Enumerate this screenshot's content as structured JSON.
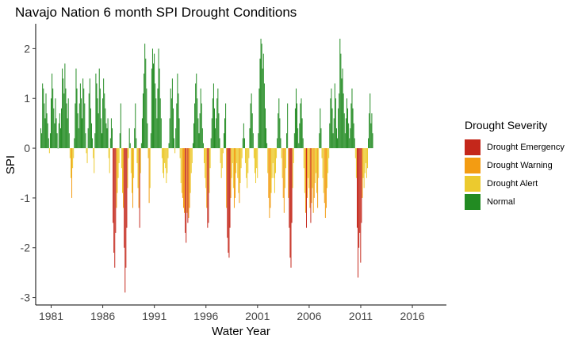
{
  "chart_data": {
    "type": "bar",
    "title": "Navajo Nation 6 month SPI Drought Conditions",
    "xlabel": "Water Year",
    "ylabel": "SPI",
    "xlim": [
      1979.5,
      2019.3
    ],
    "ylim": [
      -3.15,
      2.5
    ],
    "x_ticks": [
      "1981",
      "1986",
      "1991",
      "1996",
      "2001",
      "2006",
      "2011",
      "2016"
    ],
    "y_ticks": [
      "-3",
      "-2",
      "-1",
      "0",
      "1",
      "2"
    ],
    "grid": false,
    "legend": {
      "title": "Drought Severity",
      "position": "right",
      "items": [
        {
          "label": "Drought Emergency",
          "color": "#c4271b"
        },
        {
          "label": "Drought Warning",
          "color": "#f39c12"
        },
        {
          "label": "Drought Alert",
          "color": "#ecca2e"
        },
        {
          "label": "Normal",
          "color": "#228b22"
        }
      ]
    },
    "series": [
      {
        "name": "SPI",
        "x_start": 1980.0,
        "x_step": 0.0833,
        "values": [
          0.4,
          0.3,
          1.3,
          1.2,
          0.9,
          0.6,
          1.1,
          0.7,
          0.5,
          0.2,
          -0.1,
          0.3,
          1.0,
          1.5,
          1.2,
          0.8,
          0.5,
          1.0,
          0.6,
          0.3,
          0.0,
          0.5,
          0.7,
          0.4,
          0.8,
          1.6,
          1.4,
          1.1,
          1.7,
          1.2,
          0.9,
          0.6,
          1.0,
          0.3,
          -0.2,
          -0.6,
          -1.0,
          -0.4,
          -0.2,
          0.2,
          0.9,
          1.6,
          1.2,
          0.7,
          0.4,
          0.9,
          1.3,
          1.0,
          0.6,
          1.4,
          1.2,
          0.9,
          0.3,
          -0.1,
          -0.3,
          0.4,
          1.1,
          1.4,
          0.8,
          0.5,
          0.2,
          -0.2,
          -0.5,
          0.3,
          1.5,
          1.3,
          1.0,
          0.7,
          1.6,
          1.2,
          0.6,
          0.3,
          1.0,
          1.4,
          1.1,
          0.8,
          0.5,
          0.4,
          0.6,
          -0.2,
          -0.5,
          0.2,
          0.6,
          0.4,
          -1.5,
          -2.1,
          -2.4,
          -1.7,
          -1.2,
          -0.9,
          -0.6,
          -0.3,
          0.3,
          0.9,
          -0.4,
          -0.9,
          -1.2,
          -2.0,
          -2.9,
          -2.4,
          -1.6,
          -0.8,
          -0.2,
          0.4,
          0.1,
          -0.5,
          -0.9,
          -1.2,
          -0.6,
          0.4,
          0.9,
          0.2,
          -0.3,
          -0.8,
          -1.2,
          -1.6,
          -0.5,
          0.1,
          0.6,
          1.1,
          1.5,
          2.1,
          1.8,
          1.2,
          0.5,
          -0.2,
          -1.1,
          -0.8,
          0.3,
          1.6,
          2.0,
          1.7,
          1.9,
          1.3,
          1.0,
          0.6,
          1.2,
          2.0,
          1.6,
          1.0,
          0.6,
          -0.2,
          -0.5,
          -0.6,
          -0.3,
          -0.4,
          -0.7,
          -0.5,
          -0.2,
          0.1,
          0.6,
          1.2,
          1.0,
          1.4,
          0.8,
          0.2,
          -0.1,
          0.4,
          0.9,
          1.5,
          1.1,
          0.6,
          -0.2,
          -0.7,
          -0.9,
          -1.0,
          -1.2,
          -1.3,
          -1.7,
          -1.9,
          -1.3,
          -1.5,
          -1.4,
          -1.2,
          -0.9,
          -0.5,
          -0.3,
          0.1,
          0.5,
          0.9,
          1.3,
          1.5,
          1.0,
          0.6,
          0.3,
          0.7,
          1.2,
          0.9,
          0.4,
          0.1,
          -0.3,
          -0.6,
          -0.8,
          -1.2,
          -1.6,
          -1.5,
          -0.9,
          -0.4,
          0.2,
          0.6,
          1.0,
          1.3,
          0.8,
          0.4,
          0.6,
          1.0,
          1.2,
          0.7,
          0.2,
          -0.3,
          -0.6,
          -0.4,
          -0.1,
          0.3,
          0.6,
          0.9,
          -1.2,
          -1.8,
          -2.1,
          -2.2,
          -1.6,
          -1.0,
          -0.6,
          -0.3,
          -0.8,
          -1.2,
          -1.0,
          -0.5,
          -0.3,
          -0.6,
          -0.9,
          -1.1,
          -0.7,
          -0.4,
          -0.2,
          0.2,
          0.5,
          0.2,
          -0.3,
          -0.6,
          -0.8,
          -0.5,
          -0.2,
          0.4,
          0.9,
          1.1,
          0.7,
          0.3,
          -0.2,
          -0.5,
          -0.7,
          -0.4,
          -0.6,
          0.3,
          1.2,
          1.8,
          2.2,
          2.1,
          1.6,
          1.9,
          1.3,
          0.8,
          0.4,
          0.1,
          -0.5,
          -1.0,
          -1.4,
          -1.2,
          -0.9,
          -0.6,
          -0.3,
          -0.6,
          -0.9,
          -0.5,
          -0.2,
          0.2,
          0.7,
          1.0,
          0.6,
          0.2,
          -0.2,
          -0.6,
          -1.0,
          -1.3,
          -0.8,
          -0.4,
          0.3,
          0.9,
          -1.0,
          -1.6,
          -2.2,
          -2.4,
          -1.5,
          -0.8,
          -0.3,
          0.3,
          0.8,
          1.2,
          0.9,
          0.4,
          0.1,
          0.5,
          0.9,
          1.0,
          0.6,
          0.2,
          -0.4,
          -0.9,
          -1.3,
          -1.6,
          -1.0,
          -0.6,
          -0.8,
          -1.2,
          -1.5,
          -1.1,
          -0.8,
          -1.3,
          -1.0,
          -0.7,
          -0.5,
          -0.9,
          -1.2,
          -0.6,
          0.3,
          0.8,
          0.4,
          -0.2,
          -0.6,
          -0.9,
          -1.1,
          -1.4,
          -1.2,
          -0.8,
          -0.5,
          -0.2,
          0.5,
          1.0,
          1.2,
          0.8,
          0.3,
          0.6,
          1.3,
          1.0,
          0.4,
          0.2,
          0.8,
          1.1,
          2.2,
          1.9,
          1.4,
          1.6,
          1.1,
          0.7,
          0.3,
          0.6,
          1.0,
          0.8,
          0.5,
          0.2,
          0.4,
          0.9,
          1.2,
          0.8,
          0.5,
          0.2,
          -0.2,
          -0.6,
          -1.6,
          -2.6,
          -2.0,
          -1.7,
          -2.3,
          -1.5,
          -1.0,
          -0.6,
          -0.8,
          -0.5,
          -0.3,
          -0.6,
          -0.4,
          0.2,
          0.7,
          1.1,
          0.5,
          0.7,
          0.3
        ]
      }
    ]
  }
}
